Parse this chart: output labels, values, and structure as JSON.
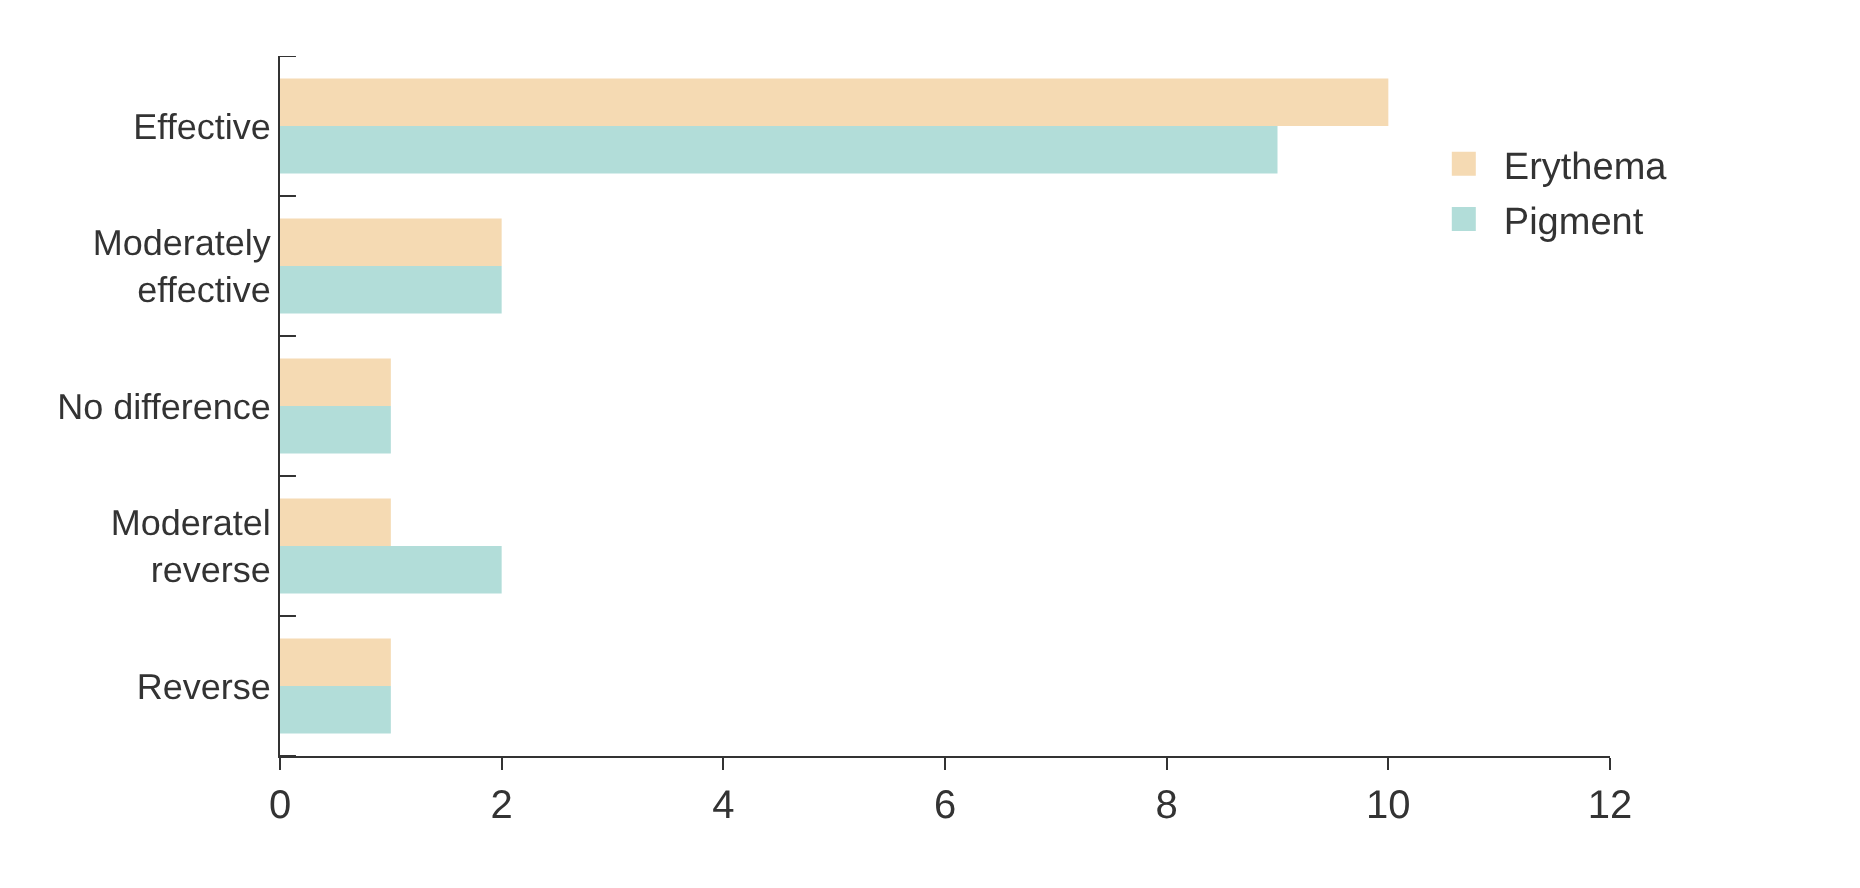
{
  "chart_data": {
    "type": "bar",
    "orientation": "horizontal",
    "categories": [
      "Effective",
      "Moderately effective",
      "No difference",
      "Moderatel reverse",
      "Reverse"
    ],
    "series": [
      {
        "name": "Erythema",
        "color": "#f5dab3",
        "values": [
          10,
          2,
          1,
          1,
          1
        ]
      },
      {
        "name": "Pigment",
        "color": "#b2ddd9",
        "values": [
          9,
          2,
          1,
          2,
          1
        ]
      }
    ],
    "xlim": [
      0,
      12
    ],
    "xticks": [
      0,
      2,
      4,
      6,
      8,
      10,
      12
    ],
    "grid": false,
    "legend": "top right"
  }
}
